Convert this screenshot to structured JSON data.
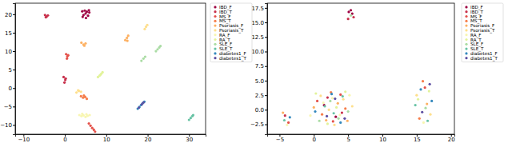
{
  "chart_data": [
    {
      "type": "scatter",
      "legend": "right",
      "xlim": [
        -12,
        34
      ],
      "ylim": [
        -12.5,
        23
      ],
      "xticks": [
        {
          "value": -10,
          "label": "−10"
        },
        0,
        10,
        20,
        30
      ],
      "yticks": [
        {
          "value": -10,
          "label": "−10"
        },
        {
          "value": -5,
          "label": "−5"
        },
        0,
        5,
        10,
        15,
        20
      ],
      "series": [
        {
          "name": "IBD_F",
          "color": "#9e0142",
          "x": [
            4.2,
            4.8,
            5.3,
            5.9,
            4.5,
            5.6,
            5.0,
            4.3,
            5.8,
            5.1
          ],
          "values": [
            20.8,
            21.0,
            20.7,
            20.5,
            19.8,
            19.6,
            20.2,
            19.3,
            21.1,
            19.0
          ]
        },
        {
          "name": "IBD_T",
          "color": "#c8314c",
          "x": [
            -4.8,
            -4.4,
            -4.1,
            -4.6,
            -0.3,
            0.1,
            -0.1,
            0.2
          ],
          "values": [
            19.8,
            19.4,
            19.7,
            19.2,
            3.0,
            2.2,
            1.5,
            2.6
          ]
        },
        {
          "name": "MS_F",
          "color": "#e4514a",
          "x": [
            0.3,
            0.6,
            0.5,
            0.8,
            5.8,
            6.2,
            6.6,
            7.0,
            7.3
          ],
          "values": [
            9.2,
            8.6,
            8.0,
            8.9,
            -9.6,
            -10.2,
            -10.8,
            -11.3,
            -11.8
          ]
        },
        {
          "name": "MS_T",
          "color": "#f67d4a",
          "x": [
            3.9,
            4.4,
            4.9,
            5.3,
            4.6
          ],
          "values": [
            -2.2,
            -2.6,
            -2.4,
            -2.9,
            -2.0
          ]
        },
        {
          "name": "Psoriasis_F",
          "color": "#fdb163",
          "x": [
            14.6,
            15.0,
            15.3,
            15.1,
            4.0,
            4.5,
            5.0,
            4.7
          ],
          "values": [
            13.0,
            13.6,
            14.2,
            12.8,
            12.3,
            11.8,
            12.1,
            11.5
          ]
        },
        {
          "name": "Psoriasis_T",
          "color": "#fedf8c",
          "x": [
            2.8,
            3.4,
            3.9,
            3.2,
            19.3,
            19.6,
            19.9
          ],
          "values": [
            -1.2,
            -0.8,
            -1.0,
            -0.6,
            16.0,
            16.6,
            17.1
          ]
        },
        {
          "name": "RA_F",
          "color": "#f8f6b2",
          "x": [
            3.5,
            4.0,
            4.5,
            5.0,
            5.5,
            6.0,
            4.2,
            5.2
          ],
          "values": [
            -7.3,
            -7.6,
            -7.4,
            -7.8,
            -7.5,
            -7.3,
            -7.0,
            -7.1
          ]
        },
        {
          "name": "RA_T",
          "color": "#e2f39a",
          "x": [
            8.0,
            8.4,
            8.8,
            9.1,
            8.6
          ],
          "values": [
            3.0,
            3.4,
            3.9,
            4.3,
            3.6
          ]
        },
        {
          "name": "SLE_F",
          "color": "#aadca4",
          "x": [
            18.5,
            19.0,
            19.4,
            22.0,
            22.4,
            22.8,
            23.1
          ],
          "values": [
            7.4,
            8.0,
            8.5,
            10.0,
            10.5,
            11.0,
            11.4
          ]
        },
        {
          "name": "SLE_T",
          "color": "#68c3a5",
          "x": [
            30.0,
            30.4,
            30.8,
            31.0
          ],
          "values": [
            -8.6,
            -8.1,
            -7.6,
            -7.3
          ]
        },
        {
          "name": "diabetes1_F",
          "color": "#3489bd",
          "x": [
            17.6,
            18.0,
            18.4,
            18.8,
            19.2
          ],
          "values": [
            -5.6,
            -5.1,
            -4.6,
            -4.1,
            -3.7
          ]
        },
        {
          "name": "diabetes1_T",
          "color": "#5e4fa2",
          "x": [
            17.9,
            18.6,
            19.0
          ],
          "values": [
            -5.3,
            -4.4,
            -3.9
          ]
        }
      ]
    },
    {
      "type": "scatter",
      "legend": "right",
      "xlim": [
        -6.8,
        20.5
      ],
      "ylim": [
        -4.2,
        18.3
      ],
      "xticks": [
        {
          "value": -5,
          "label": "−5"
        },
        0,
        5,
        10,
        15,
        20
      ],
      "yticks": [
        {
          "value": -2.5,
          "label": "−2.5"
        },
        {
          "value": 0,
          "label": "0.0"
        },
        2.5,
        {
          "value": 5,
          "label": "5.0"
        },
        7.5,
        {
          "value": 10,
          "label": "10.0"
        },
        12.5,
        {
          "value": 15,
          "label": "15.0"
        },
        17.5
      ],
      "series": [
        {
          "name": "IBD_F",
          "color": "#9e0142",
          "x": [
            5.1,
            5.4,
            5.6,
            1.5,
            3.2
          ],
          "values": [
            16.8,
            17.1,
            16.5,
            0.8,
            -1.2
          ]
        },
        {
          "name": "IBD_T",
          "color": "#c8314c",
          "x": [
            5.0,
            5.8,
            2.0,
            4.1,
            -4.2
          ],
          "values": [
            15.6,
            15.9,
            2.1,
            -0.5,
            -1.0
          ]
        },
        {
          "name": "MS_F",
          "color": "#e4514a",
          "x": [
            0.5,
            2.8,
            3.9,
            16.2,
            -3.7
          ],
          "values": [
            1.5,
            -2.0,
            2.6,
            3.8,
            -2.2
          ]
        },
        {
          "name": "MS_T",
          "color": "#f67d4a",
          "x": [
            1.2,
            2.5,
            4.6,
            15.4,
            15.9
          ],
          "values": [
            -0.8,
            3.0,
            0.2,
            -1.5,
            4.9
          ]
        },
        {
          "name": "Psoriasis_F",
          "color": "#fdb163",
          "x": [
            0.0,
            1.8,
            3.5,
            4.9,
            16.5,
            -4.5
          ],
          "values": [
            0.4,
            -1.8,
            1.1,
            -1.9,
            1.0,
            -0.5
          ]
        },
        {
          "name": "Psoriasis_T",
          "color": "#fedf8c",
          "x": [
            1.0,
            2.2,
            3.0,
            4.3,
            5.6,
            15.0,
            17.0
          ],
          "values": [
            2.4,
            0.0,
            -2.6,
            1.8,
            0.6,
            2.5,
            -0.8
          ]
        },
        {
          "name": "RA_F",
          "color": "#f8f6b2",
          "x": [
            -0.5,
            1.4,
            2.7,
            3.8,
            5.2,
            16.0,
            -3.9
          ],
          "values": [
            -1.0,
            1.2,
            2.0,
            -0.9,
            2.5,
            -2.2,
            -2.6
          ]
        },
        {
          "name": "RA_T",
          "color": "#e2f39a",
          "x": [
            0.3,
            2.0,
            3.3,
            4.6,
            15.2,
            16.8
          ],
          "values": [
            2.8,
            -2.4,
            0.4,
            3.1,
            1.8,
            3.2
          ]
        },
        {
          "name": "SLE_F",
          "color": "#aadca4",
          "x": [
            0.8,
            2.4,
            3.6,
            5.0,
            16.3,
            5.4
          ],
          "values": [
            -1.9,
            1.5,
            -1.5,
            -0.3,
            0.3,
            16.2
          ]
        },
        {
          "name": "SLE_T",
          "color": "#68c3a5",
          "x": [
            1.6,
            2.9,
            4.2,
            14.8,
            16.6,
            -4.3
          ],
          "values": [
            0.6,
            -0.6,
            2.3,
            0.8,
            -1.9,
            -1.8
          ]
        },
        {
          "name": "diabetes1_F",
          "color": "#3489bd",
          "x": [
            0.2,
            2.6,
            3.9,
            15.6,
            17.2,
            -3.5
          ],
          "values": [
            -0.3,
            2.7,
            -2.2,
            3.5,
            1.5,
            -1.3
          ]
        },
        {
          "name": "diabetes1_T",
          "color": "#5e4fa2",
          "x": [
            1.9,
            3.1,
            4.5,
            15.8,
            16.9
          ],
          "values": [
            -1.1,
            1.9,
            -1.5,
            -0.4,
            4.4
          ]
        }
      ]
    }
  ]
}
